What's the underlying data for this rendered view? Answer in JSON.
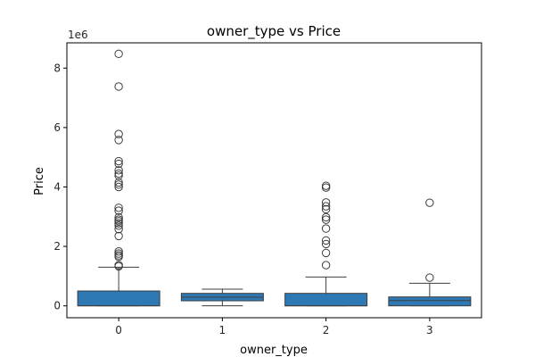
{
  "chart_data": {
    "type": "boxplot",
    "title": "owner_type vs Price",
    "xlabel": "owner_type",
    "ylabel": "Price",
    "y_offset_text": "1e6",
    "categories": [
      "0",
      "1",
      "2",
      "3"
    ],
    "ylim": [
      -400000,
      8850000
    ],
    "yticks": [
      0,
      2000000,
      4000000,
      6000000,
      8000000
    ],
    "ytick_labels": [
      "0",
      "2",
      "4",
      "6",
      "8"
    ],
    "grid": false,
    "box_color": "#2e78b4",
    "boxes": [
      {
        "category": "0",
        "whisker_low": 0,
        "q1": 0,
        "median": 0,
        "q3": 500000,
        "whisker_high": 1300000,
        "outliers": [
          8480000,
          7380000,
          5780000,
          5580000,
          4870000,
          4780000,
          4560000,
          4450000,
          4380000,
          4150000,
          4080000,
          4000000,
          3300000,
          3200000,
          2980000,
          2900000,
          2850000,
          2780000,
          2700000,
          2580000,
          2350000,
          1830000,
          1760000,
          1700000,
          1650000,
          1370000,
          1330000
        ]
      },
      {
        "category": "1",
        "whisker_low": 0,
        "q1": 170000,
        "median": 290000,
        "q3": 420000,
        "whisker_high": 560000,
        "outliers": []
      },
      {
        "category": "2",
        "whisker_low": 0,
        "q1": 0,
        "median": 0,
        "q3": 420000,
        "whisker_high": 970000,
        "outliers": [
          4040000,
          3980000,
          3480000,
          3350000,
          3250000,
          2980000,
          2900000,
          2600000,
          2200000,
          2080000,
          1780000,
          1370000
        ]
      },
      {
        "category": "3",
        "whisker_low": 0,
        "q1": 0,
        "median": 180000,
        "q3": 300000,
        "whisker_high": 760000,
        "outliers": [
          3470000,
          950000
        ]
      }
    ]
  }
}
